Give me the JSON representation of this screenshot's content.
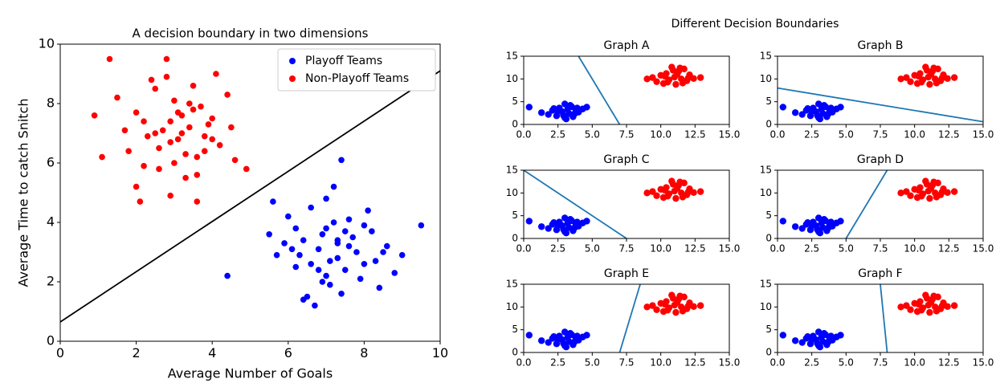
{
  "chart_data": [
    {
      "type": "scatter",
      "title": "A decision boundary in two dimensions",
      "x_label": "Average Number of Goals",
      "y_label": "Average Time to catch Snitch",
      "xlim": [
        0,
        10
      ],
      "ylim": [
        0,
        10
      ],
      "xticks": [
        0,
        2,
        4,
        6,
        8,
        10
      ],
      "yticks": [
        0,
        2,
        4,
        6,
        8,
        10
      ],
      "legend": "upper right",
      "series": [
        {
          "name": "Playoff Teams",
          "color": "#0000ff",
          "x": [
            4.4,
            5.5,
            5.7,
            6.0,
            6.2,
            6.4,
            6.5,
            6.6,
            6.8,
            6.9,
            7.0,
            7.1,
            7.2,
            7.3,
            7.4,
            7.5,
            7.6,
            7.8,
            8.0,
            8.2,
            8.4,
            8.6,
            8.8,
            9.0,
            9.5,
            6.1,
            6.7,
            7.0,
            7.3,
            7.7,
            8.1,
            6.3,
            6.9,
            7.4,
            7.9,
            5.9,
            6.6,
            7.2,
            7.6,
            8.3,
            5.6,
            7.1,
            7.5,
            6.8,
            8.5,
            7.3,
            6.4,
            8.0,
            7.0,
            6.2
          ],
          "y": [
            2.2,
            3.6,
            2.9,
            4.2,
            2.5,
            3.4,
            1.5,
            4.5,
            3.1,
            2.0,
            3.8,
            2.7,
            5.2,
            3.3,
            6.1,
            2.4,
            4.1,
            3.0,
            2.6,
            3.7,
            1.8,
            3.2,
            2.3,
            2.9,
            3.9,
            3.1,
            1.2,
            4.8,
            2.8,
            3.5,
            4.4,
            2.9,
            3.6,
            1.6,
            2.1,
            3.3,
            2.6,
            4.0,
            3.2,
            2.7,
            4.7,
            1.9,
            3.7,
            2.4,
            3.0,
            3.4,
            1.4,
            3.9,
            2.2,
            3.8
          ]
        },
        {
          "name": "Non-Playoff Teams",
          "color": "#ff0000",
          "x": [
            1.3,
            0.9,
            1.5,
            1.8,
            2.0,
            2.2,
            2.4,
            2.5,
            2.6,
            2.8,
            2.9,
            3.0,
            3.1,
            3.2,
            3.3,
            3.4,
            3.5,
            3.6,
            3.7,
            3.8,
            4.0,
            4.2,
            4.4,
            4.6,
            4.9,
            2.1,
            2.7,
            3.0,
            3.4,
            3.9,
            2.3,
            2.9,
            3.6,
            4.1,
            1.7,
            2.5,
            3.2,
            3.8,
            2.0,
            3.5,
            2.9,
            2.2,
            3.3,
            4.5,
            1.1,
            2.8,
            3.6,
            3.1,
            2.6,
            4.0
          ],
          "y": [
            9.5,
            7.6,
            8.2,
            6.4,
            7.7,
            5.9,
            8.8,
            7.0,
            6.5,
            9.5,
            7.4,
            8.1,
            6.8,
            7.6,
            5.5,
            7.2,
            8.6,
            6.2,
            7.9,
            6.9,
            7.5,
            6.6,
            8.3,
            6.1,
            5.8,
            4.7,
            7.1,
            6.0,
            8.0,
            7.3,
            6.9,
            4.9,
            4.7,
            9.0,
            7.1,
            8.5,
            7.0,
            6.4,
            5.2,
            7.8,
            6.7,
            7.4,
            6.3,
            7.2,
            6.2,
            8.9,
            5.6,
            7.7,
            5.8,
            6.8
          ]
        }
      ],
      "boundary": {
        "color": "#000000",
        "x": [
          0,
          10
        ],
        "y": [
          0.65,
          9.1
        ]
      }
    },
    {
      "type": "panels",
      "title": "Different Decision Boundaries",
      "xlim": [
        0,
        15
      ],
      "ylim": [
        0,
        15
      ],
      "xticks": [
        {
          "value": 0,
          "label": "0.0"
        },
        {
          "value": 2.5,
          "label": "2.5"
        },
        {
          "value": 5,
          "label": "5.0"
        },
        {
          "value": 7.5,
          "label": "7.5"
        },
        {
          "value": 10,
          "label": "10.0"
        },
        {
          "value": 12.5,
          "label": "12.5"
        },
        {
          "value": 15,
          "label": "15.0"
        }
      ],
      "yticks": [
        0,
        5,
        10,
        15
      ],
      "series": [
        {
          "color": "#0000ff",
          "x": [
            0.4,
            1.3,
            1.8,
            2.1,
            2.4,
            2.6,
            2.8,
            3.0,
            3.1,
            3.2,
            3.3,
            3.5,
            3.6,
            3.8,
            4.0,
            4.3,
            4.6,
            2.9,
            3.4,
            2.5,
            3.7,
            3.0,
            2.2,
            3.9
          ],
          "y": [
            3.8,
            2.6,
            2.2,
            3.1,
            1.9,
            3.6,
            2.8,
            4.5,
            1.2,
            3.3,
            2.4,
            3.9,
            1.7,
            3.0,
            2.7,
            3.4,
            3.8,
            2.0,
            4.2,
            2.9,
            2.3,
            1.5,
            3.5,
            3.6
          ]
        },
        {
          "color": "#ff0000",
          "x": [
            9.0,
            9.4,
            9.7,
            10.0,
            10.2,
            10.4,
            10.6,
            10.8,
            11.0,
            11.1,
            11.3,
            11.5,
            11.7,
            11.9,
            12.1,
            12.4,
            12.9,
            10.5,
            11.2,
            10.9,
            11.6,
            10.3,
            11.4,
            12.0
          ],
          "y": [
            10.0,
            10.3,
            9.4,
            10.8,
            9.0,
            11.2,
            9.8,
            12.6,
            10.4,
            8.8,
            11.7,
            10.0,
            12.2,
            9.6,
            10.9,
            10.1,
            10.3,
            9.3,
            11.0,
            11.9,
            9.1,
            10.6,
            12.4,
            10.2
          ]
        }
      ],
      "boundary_color": "#1f77b4",
      "panels": [
        {
          "title": "Graph A",
          "boundary": {
            "x": [
              7.0,
              4.0
            ],
            "y": [
              0,
              15
            ]
          }
        },
        {
          "title": "Graph B",
          "boundary": {
            "x": [
              0,
              15
            ],
            "y": [
              8,
              0.6
            ]
          }
        },
        {
          "title": "Graph C",
          "boundary": {
            "x": [
              0,
              7.5
            ],
            "y": [
              15,
              0
            ]
          }
        },
        {
          "title": "Graph D",
          "boundary": {
            "x": [
              5,
              8
            ],
            "y": [
              0,
              15
            ]
          }
        },
        {
          "title": "Graph E",
          "boundary": {
            "x": [
              7,
              8.5
            ],
            "y": [
              0,
              15
            ]
          }
        },
        {
          "title": "Graph F",
          "boundary": {
            "x": [
              7.5,
              8
            ],
            "y": [
              15,
              0
            ]
          }
        }
      ]
    }
  ]
}
